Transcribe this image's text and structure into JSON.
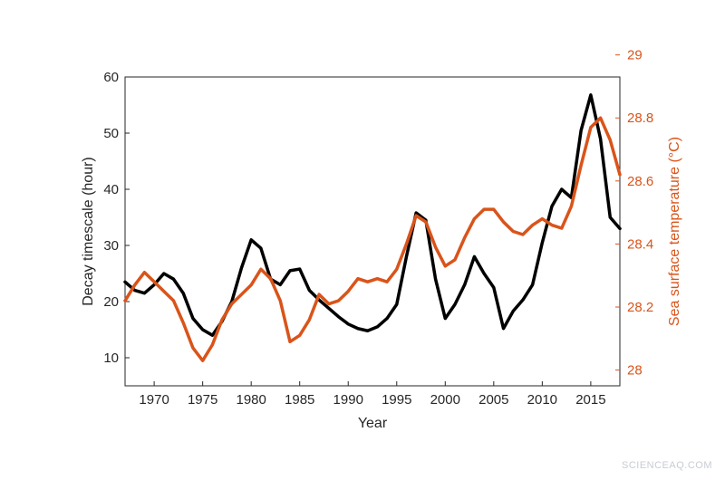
{
  "chart_data": {
    "type": "line",
    "xlabel": "Year",
    "ylabel_left": "Decay timescale (hour)",
    "ylabel_right": "Sea surface temperature (°C)",
    "xlim": [
      1967,
      2018
    ],
    "ylim_left": [
      5,
      60
    ],
    "ylim_right": [
      27.95,
      28.93
    ],
    "x_ticks": [
      1970,
      1975,
      1980,
      1985,
      1990,
      1995,
      2000,
      2005,
      2010,
      2015
    ],
    "y_left_ticks": [
      10,
      20,
      30,
      40,
      50,
      60
    ],
    "y_right_ticks": [
      28,
      28.2,
      28.4,
      28.6,
      28.8,
      29
    ],
    "y_right_tick_labels": [
      "28",
      "28.2",
      "28.4",
      "28.6",
      "28.8",
      "29"
    ],
    "grid": false,
    "colors": {
      "left_series": "#000000",
      "right_series": "#d9541a",
      "axis": "#262626"
    },
    "x": [
      1967,
      1968,
      1969,
      1970,
      1971,
      1972,
      1973,
      1974,
      1975,
      1976,
      1977,
      1978,
      1979,
      1980,
      1981,
      1982,
      1983,
      1984,
      1985,
      1986,
      1987,
      1988,
      1989,
      1990,
      1991,
      1992,
      1993,
      1994,
      1995,
      1996,
      1997,
      1998,
      1999,
      2000,
      2001,
      2002,
      2003,
      2004,
      2005,
      2006,
      2007,
      2008,
      2009,
      2010,
      2011,
      2012,
      2013,
      2014,
      2015,
      2016,
      2017,
      2018
    ],
    "series": [
      {
        "axis": "left",
        "values": [
          23.5,
          22.0,
          21.5,
          23.0,
          25.0,
          24.0,
          21.5,
          17.0,
          15.0,
          14.0,
          16.5,
          20.0,
          26.0,
          31.0,
          29.5,
          24.0,
          23.0,
          25.5,
          25.8,
          22.0,
          20.3,
          18.8,
          17.3,
          16.0,
          15.2,
          14.8,
          15.5,
          17.0,
          19.5,
          28.0,
          35.8,
          34.5,
          24.0,
          17.0,
          19.5,
          23.0,
          28.0,
          25.0,
          22.5,
          15.2,
          18.3,
          20.3,
          23.0,
          30.5,
          37.0,
          40.0,
          38.5,
          50.5,
          56.8,
          49.0,
          35.0,
          33.0
        ]
      },
      {
        "axis": "right",
        "values": [
          28.22,
          28.27,
          28.31,
          28.28,
          28.25,
          28.22,
          28.15,
          28.07,
          28.03,
          28.08,
          28.16,
          28.21,
          28.24,
          28.27,
          28.32,
          28.29,
          28.22,
          28.09,
          28.11,
          28.16,
          28.24,
          28.21,
          28.22,
          28.25,
          28.29,
          28.28,
          28.29,
          28.28,
          28.32,
          28.4,
          28.49,
          28.47,
          28.39,
          28.33,
          28.35,
          28.42,
          28.48,
          28.51,
          28.51,
          28.47,
          28.44,
          28.43,
          28.46,
          28.48,
          28.46,
          28.45,
          28.52,
          28.65,
          28.77,
          28.8,
          28.73,
          28.62
        ]
      }
    ]
  },
  "watermark": "SCIENCEAQ.COM"
}
